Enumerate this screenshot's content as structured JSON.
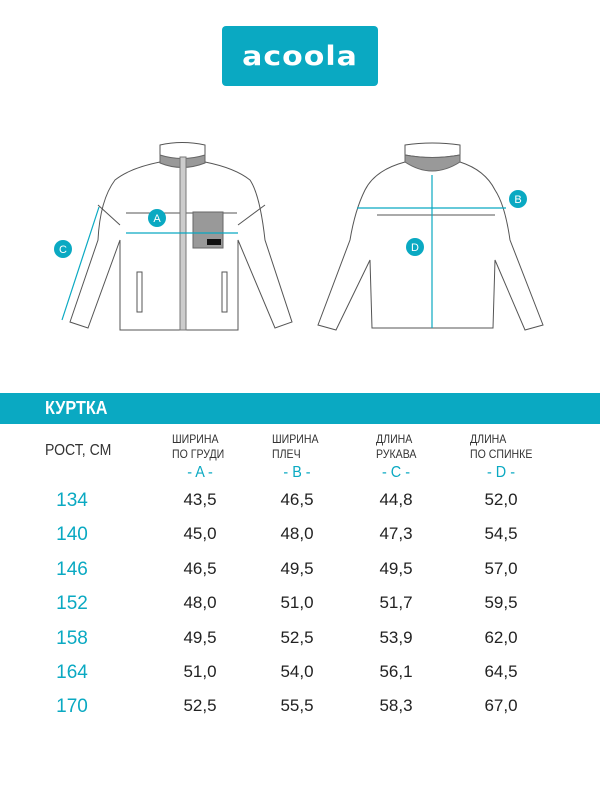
{
  "brand": {
    "logo_text": "acoola",
    "color": "#0aa9c2"
  },
  "diagram": {
    "labels": [
      "A",
      "B",
      "C",
      "D"
    ]
  },
  "table": {
    "title": "КУРТКА",
    "row_header": "РОСТ, СМ",
    "columns": [
      {
        "line1": "ШИРИНА",
        "line2": "ПО ГРУДИ",
        "letter": "- A -"
      },
      {
        "line1": "ШИРИНА",
        "line2": "ПЛЕЧ",
        "letter": "- B -"
      },
      {
        "line1": "ДЛИНА",
        "line2": "РУКАВА",
        "letter": "- C -"
      },
      {
        "line1": "ДЛИНА",
        "line2": "ПО СПИНКЕ",
        "letter": "- D -"
      }
    ],
    "rows": [
      {
        "height": "134",
        "values": [
          "43,5",
          "46,5",
          "44,8",
          "52,0"
        ]
      },
      {
        "height": "140",
        "values": [
          "45,0",
          "48,0",
          "47,3",
          "54,5"
        ]
      },
      {
        "height": "146",
        "values": [
          "46,5",
          "49,5",
          "49,5",
          "57,0"
        ]
      },
      {
        "height": "152",
        "values": [
          "48,0",
          "51,0",
          "51,7",
          "59,5"
        ]
      },
      {
        "height": "158",
        "values": [
          "49,5",
          "52,5",
          "53,9",
          "62,0"
        ]
      },
      {
        "height": "164",
        "values": [
          "51,0",
          "54,0",
          "56,1",
          "64,5"
        ]
      },
      {
        "height": "170",
        "values": [
          "52,5",
          "55,5",
          "58,3",
          "67,0"
        ]
      }
    ]
  }
}
